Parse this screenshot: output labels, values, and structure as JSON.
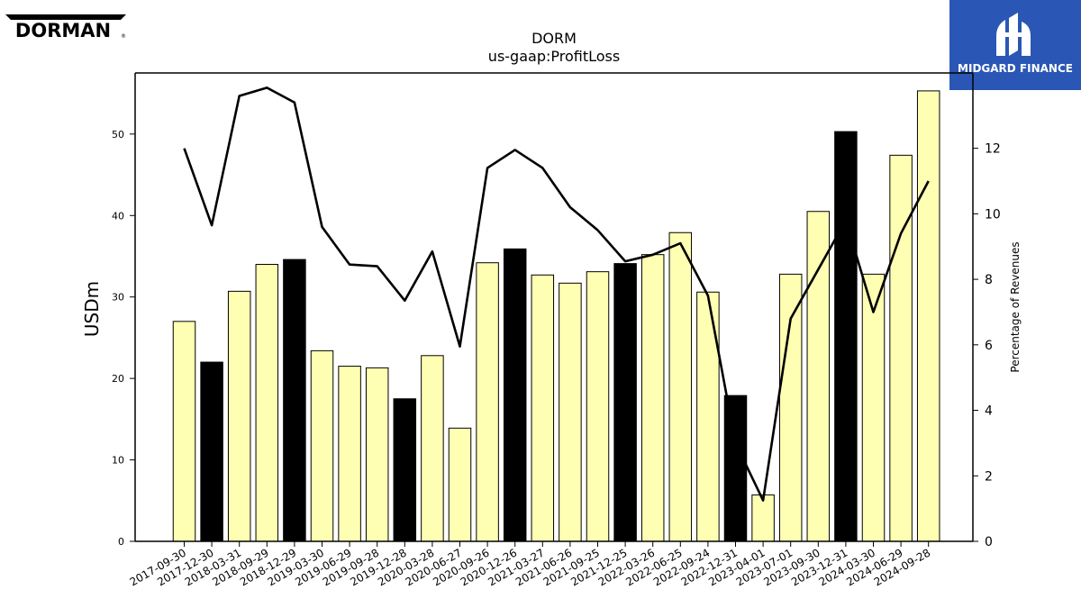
{
  "branding": {
    "company_logo_text": "DORMAN",
    "company_logo_mark": "®",
    "publisher_logo_text": "MIDGARD FINANCE",
    "publisher_brand_color": "#2a57b5"
  },
  "chart_data": {
    "type": "bar",
    "title": "DORM",
    "subtitle": "us-gaap:ProfitLoss",
    "ylabel": "USDm",
    "y2label": "Percentage of Revenues",
    "ylim": [
      0,
      57.5
    ],
    "y2lim": [
      0,
      14.3
    ],
    "yticks": [
      0,
      10,
      20,
      30,
      40,
      50
    ],
    "y2ticks": [
      0,
      2,
      4,
      6,
      8,
      10,
      12
    ],
    "categories": [
      "2017-09-30",
      "2017-12-30",
      "2018-03-31",
      "2018-09-29",
      "2018-12-29",
      "2019-03-30",
      "2019-06-29",
      "2019-09-28",
      "2019-12-28",
      "2020-03-28",
      "2020-06-27",
      "2020-09-26",
      "2020-12-26",
      "2021-03-27",
      "2021-06-26",
      "2021-09-25",
      "2021-12-25",
      "2022-03-26",
      "2022-06-25",
      "2022-09-24",
      "2022-12-31",
      "2023-04-01",
      "2023-07-01",
      "2023-09-30",
      "2023-12-31",
      "2024-03-30",
      "2024-06-29",
      "2024-09-28"
    ],
    "series": [
      {
        "type": "bar",
        "axis": "left",
        "values": [
          27.0,
          22.0,
          30.7,
          34.0,
          34.6,
          23.4,
          21.5,
          21.3,
          17.5,
          22.8,
          13.9,
          34.2,
          35.9,
          32.7,
          31.7,
          33.1,
          34.1,
          35.2,
          37.9,
          30.6,
          17.9,
          5.7,
          32.8,
          40.5,
          50.3,
          32.8,
          47.4,
          55.3
        ],
        "colors": [
          "#ffffb3",
          "#000000",
          "#ffffb3",
          "#ffffb3",
          "#000000",
          "#ffffb3",
          "#ffffb3",
          "#ffffb3",
          "#000000",
          "#ffffb3",
          "#ffffb3",
          "#ffffb3",
          "#000000",
          "#ffffb3",
          "#ffffb3",
          "#ffffb3",
          "#000000",
          "#ffffb3",
          "#ffffb3",
          "#ffffb3",
          "#000000",
          "#ffffb3",
          "#ffffb3",
          "#ffffb3",
          "#000000",
          "#ffffb3",
          "#ffffb3",
          "#ffffb3"
        ]
      },
      {
        "type": "line",
        "axis": "right",
        "color": "#000000",
        "values": [
          12.0,
          9.65,
          13.6,
          13.85,
          13.4,
          9.6,
          8.45,
          8.4,
          7.35,
          8.85,
          5.95,
          11.4,
          11.95,
          11.4,
          10.2,
          9.5,
          8.55,
          8.75,
          9.1,
          7.5,
          3.0,
          1.25,
          6.8,
          8.3,
          9.8,
          7.0,
          9.4,
          11.0
        ]
      }
    ],
    "grid": false,
    "legend": "none"
  }
}
